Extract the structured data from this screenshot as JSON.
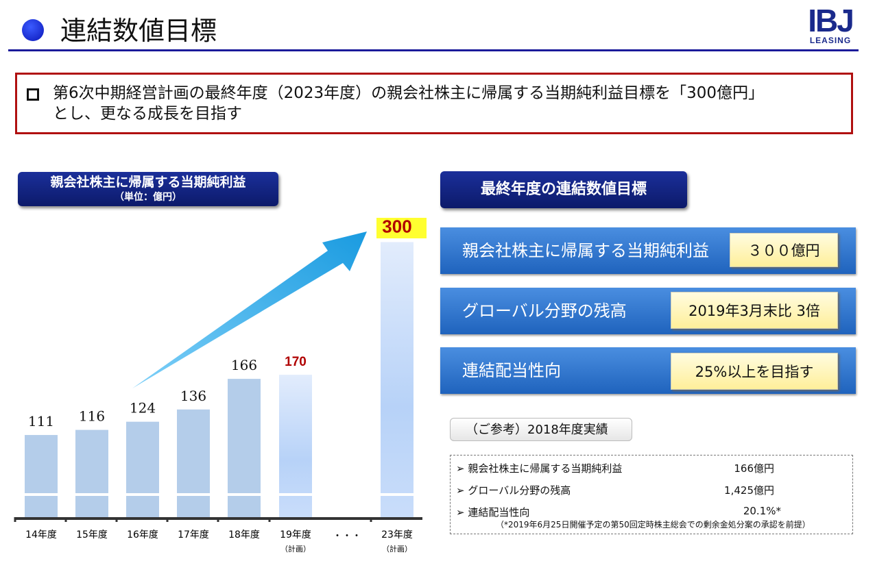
{
  "header": {
    "title": "連結数値目標",
    "logo_text": "IBJ",
    "logo_sub": "LEASING"
  },
  "message": {
    "line1": "第6次中期経営計画の最終年度（2023年度）の親会社株主に帰属する当期純利益目標を「300億円」",
    "line2": "とし、更なる成長を目指す"
  },
  "left_panel": {
    "title": "親会社株主に帰属する当期純利益",
    "unit": "（単位：億円）"
  },
  "chart_data": {
    "type": "bar",
    "title": "親会社株主に帰属する当期純利益",
    "unit": "億円",
    "categories": [
      "14年度",
      "15年度",
      "16年度",
      "17年度",
      "18年度",
      "19年度",
      "23年度"
    ],
    "sublabels": [
      "",
      "",
      "",
      "",
      "",
      "（計画）",
      "（計画）"
    ],
    "values": [
      111,
      116,
      124,
      136,
      166,
      170,
      300
    ],
    "value_labels": [
      "111",
      "116",
      "124",
      "136",
      "166",
      "170",
      "300"
    ],
    "ellipsis": "・・・",
    "axis_break": true,
    "highlight": [
      "170",
      "300"
    ],
    "colors": {
      "actual": "#b4cdea",
      "plan": "#c5dbfa",
      "highlight_text": "#b00000"
    }
  },
  "right_panel": {
    "title": "最終年度の連結数値目標",
    "targets": [
      {
        "label": "親会社株主に帰属する当期純利益",
        "value": "３００億円"
      },
      {
        "label": "グローバル分野の残高",
        "value": "2019年3月末比  3倍"
      },
      {
        "label": "連結配当性向",
        "value": "25%以上を目指す"
      }
    ],
    "reference_title": "（ご参考）2018年度実績",
    "reference": [
      {
        "label": "親会社株主に帰属する当期純利益",
        "value": "166億円"
      },
      {
        "label": "グローバル分野の残高",
        "value": "1,425億円"
      },
      {
        "label": "連結配当性向",
        "value": "20.1%*"
      }
    ],
    "note": "（*2019年6月25日開催予定の第50回定時株主総会での剰余金処分案の承認を前提）"
  }
}
